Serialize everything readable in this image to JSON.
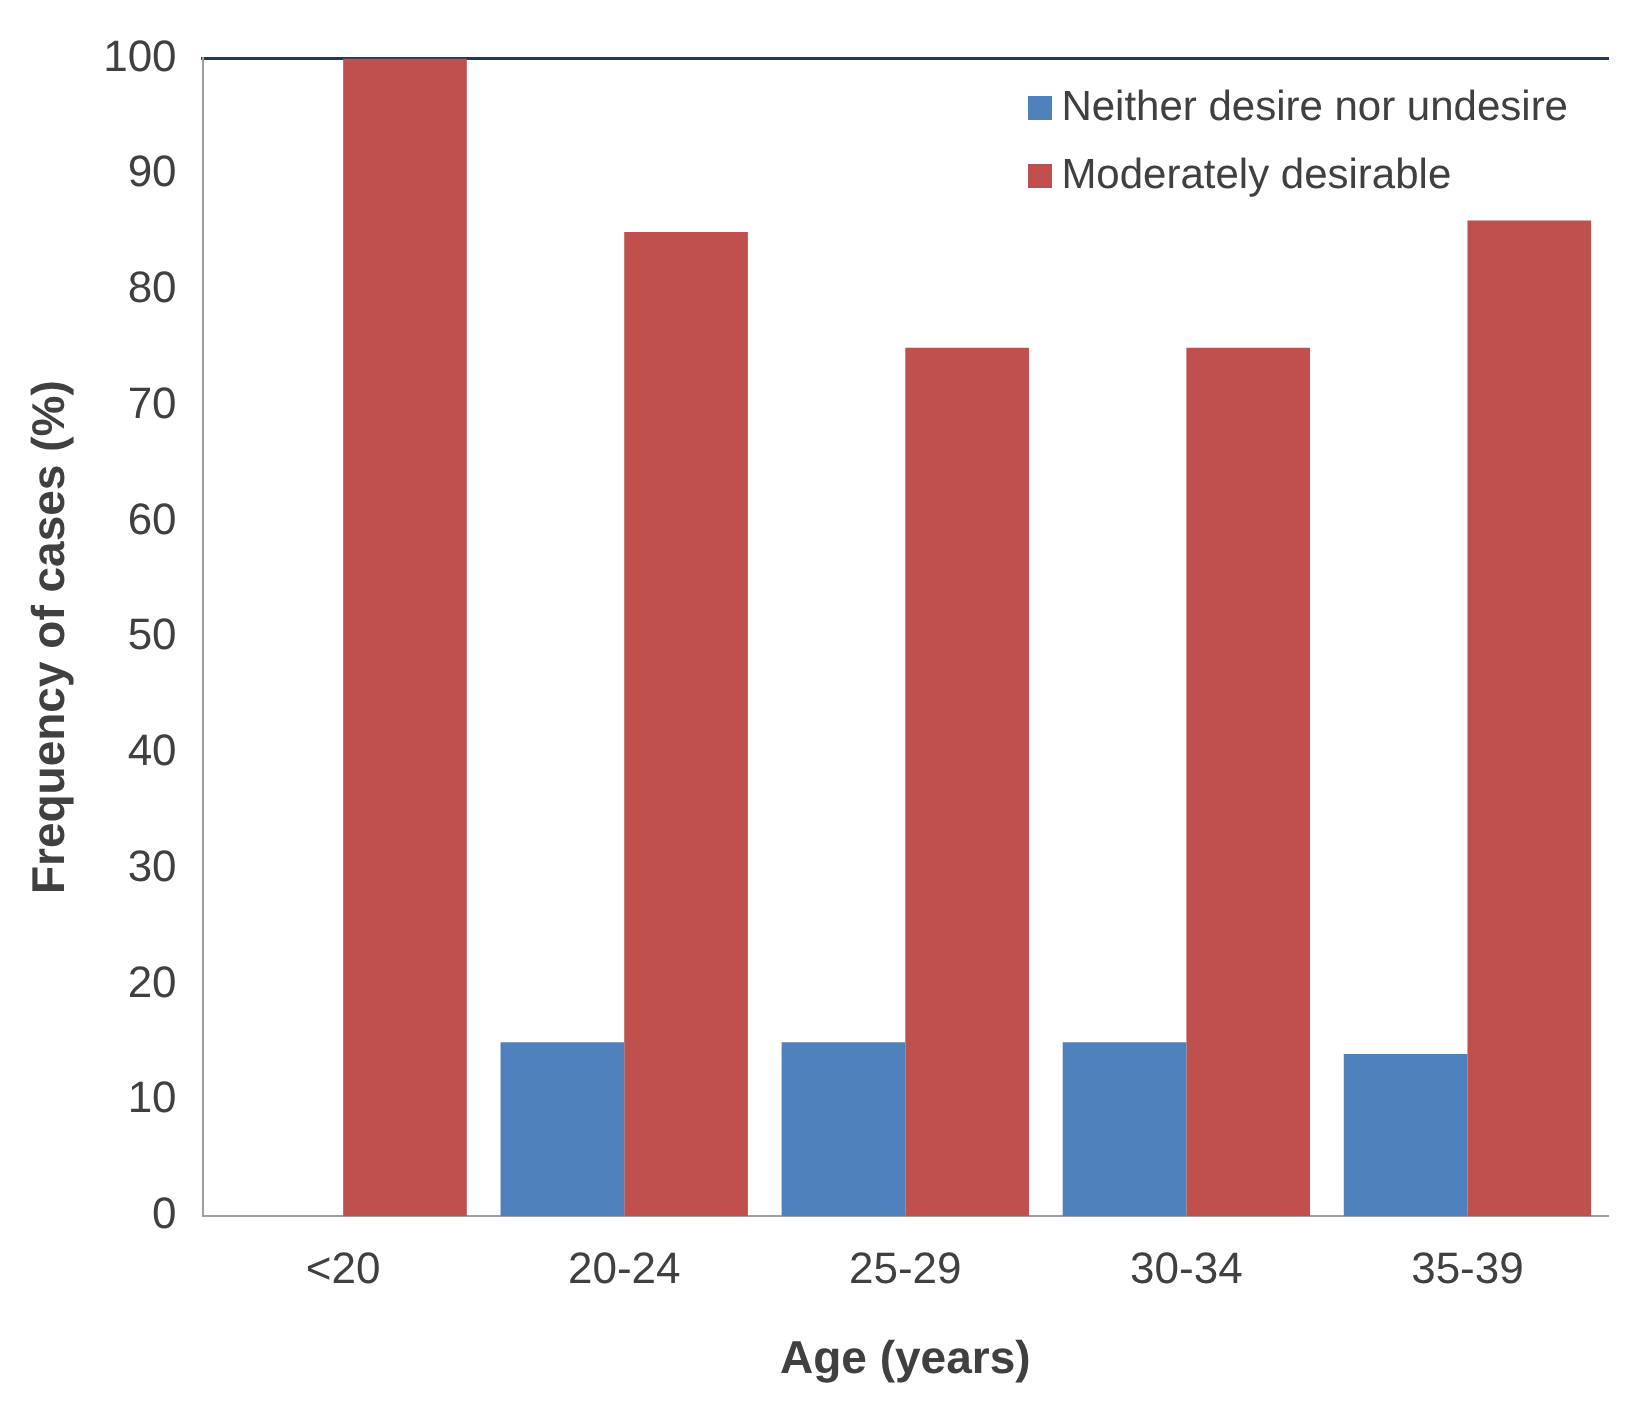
{
  "chart_data": {
    "type": "bar",
    "xlabel": "Age (years)",
    "ylabel": "Frequency of cases (%)",
    "categories": [
      "<20",
      "20-24",
      "25-29",
      "30-34",
      "35-39"
    ],
    "series": [
      {
        "name": "Neither desire nor undesire",
        "color": "#4f81bd",
        "values": [
          0,
          15,
          15,
          15,
          14
        ]
      },
      {
        "name": "Moderately desirable",
        "color": "#c0504d",
        "values": [
          100,
          85,
          75,
          75,
          86
        ]
      }
    ],
    "ylim": [
      0,
      100
    ],
    "yticks": [
      0,
      10,
      20,
      30,
      40,
      50,
      60,
      70,
      80,
      90,
      100
    ],
    "grid": false,
    "legend": "top right"
  }
}
